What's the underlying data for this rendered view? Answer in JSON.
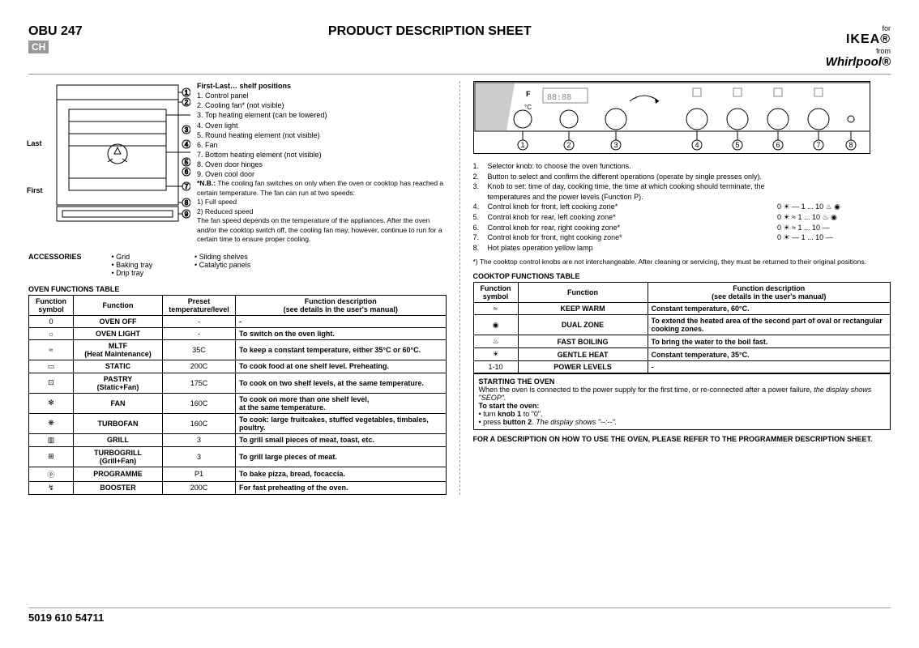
{
  "header": {
    "model": "OBU 247",
    "badge": "CH",
    "title": "PRODUCT DESCRIPTION SHEET",
    "brand_for": "for",
    "brand_ikea": "IKEA®",
    "brand_from": "from",
    "brand_whirlpool": "Whirlpool®"
  },
  "oven": {
    "last_label": "Last",
    "first_label": "First",
    "parts_heading": "First-Last… shelf positions",
    "parts": [
      "1. Control panel",
      "2. Cooling fan* (not visible)",
      "3. Top heating element (can be lowered)",
      "4. Oven light",
      "5. Round heating element (not visible)",
      "6. Fan",
      "7. Bottom heating element (not visible)",
      "8. Oven door hinges",
      "9. Oven cool door"
    ],
    "nb_label": "*N.B.:",
    "nb_text": "The cooling fan switches on only when the oven or cooktop has reached a certain temperature. The fan can run at two speeds:",
    "nb_line1": "1) Full speed",
    "nb_line2": "2) Reduced speed",
    "nb_tail": "The fan speed depends on the temperature of the appliances. After the oven and/or the cooktop switch off, the cooling fan may, however, continue to run for a certain time to ensure proper cooling."
  },
  "accessories": {
    "label": "ACCESSORIES",
    "col1": [
      "Grid",
      "Baking tray",
      "Drip tray"
    ],
    "col2": [
      "Sliding shelves",
      "Catalytic panels"
    ]
  },
  "oven_table": {
    "title": "OVEN FUNCTIONS TABLE",
    "headers": [
      "Function\nsymbol",
      "Function",
      "Preset\ntemperature/level",
      "Function description\n(see details in the user's manual)"
    ],
    "rows": [
      {
        "sym": "0",
        "fn": "OVEN OFF",
        "preset": "-",
        "desc": "-"
      },
      {
        "sym": "light",
        "fn": "OVEN LIGHT",
        "preset": "-",
        "desc": "To switch on the oven light."
      },
      {
        "sym": "mltf",
        "fn": "MLTF\n(Heat Maintenance)",
        "preset": "35C",
        "desc": "To keep a constant temperature, either 35°C or 60°C."
      },
      {
        "sym": "static",
        "fn": "STATIC",
        "preset": "200C",
        "desc": "To cook food at one shelf level. Preheating."
      },
      {
        "sym": "pastry",
        "fn": "PASTRY\n(Static+Fan)",
        "preset": "175C",
        "desc": "To cook on two shelf levels, at the same temperature."
      },
      {
        "sym": "fan",
        "fn": "FAN",
        "preset": "160C",
        "desc": "To cook on more than one shelf level,\nat the same temperature."
      },
      {
        "sym": "turbofan",
        "fn": "TURBOFAN",
        "preset": "160C",
        "desc": "To cook: large fruitcakes, stuffed vegetables, timbales, poultry."
      },
      {
        "sym": "grill",
        "fn": "GRILL",
        "preset": "3",
        "desc": "To grill small pieces of meat, toast, etc."
      },
      {
        "sym": "turbogrill",
        "fn": "TURBOGRILL\n(Grill+Fan)",
        "preset": "3",
        "desc": "To grill large pieces of meat."
      },
      {
        "sym": "prog",
        "fn": "PROGRAMME",
        "preset": "P1",
        "desc": "To bake pizza, bread, focaccia."
      },
      {
        "sym": "booster",
        "fn": "BOOSTER",
        "preset": "200C",
        "desc": "For fast preheating of the oven."
      }
    ]
  },
  "knobs": {
    "items": [
      {
        "n": "1.",
        "t": "Selector knob: to choose the oven functions.",
        "s": ""
      },
      {
        "n": "2.",
        "t": "Button to select and confirm the different operations (operate by single presses only).",
        "s": ""
      },
      {
        "n": "3.",
        "t": "Knob to set: time of day, cooking time, the time at which cooking should terminate, the temperatures and the power levels (Function P).",
        "s": ""
      },
      {
        "n": "4.",
        "t": "Control knob for front, left cooking zone*",
        "s": "0 ☀ — 1 ... 10 ♨ ◉"
      },
      {
        "n": "5.",
        "t": "Control knob for rear, left cooking zone*",
        "s": "0 ☀ ≈ 1 ... 10 ♨ ◉"
      },
      {
        "n": "6.",
        "t": "Control knob for rear, right cooking zone*",
        "s": "0 ☀ ≈ 1 ... 10 —"
      },
      {
        "n": "7.",
        "t": "Control knob for front, right cooking zone*",
        "s": "0 ☀ — 1 ... 10 —"
      },
      {
        "n": "8.",
        "t": "Hot plates operation yellow lamp",
        "s": ""
      }
    ],
    "footnote": "*) The cooktop control knobs are not interchangeable. After cleaning or servicing, they must be returned to their original positions."
  },
  "cooktop_table": {
    "title": "COOKTOP FUNCTIONS TABLE",
    "headers": [
      "Function\nsymbol",
      "Function",
      "Function description\n(see details in the user's manual)"
    ],
    "rows": [
      {
        "sym": "≈",
        "fn": "KEEP WARM",
        "desc": "Constant temperature, 60°C."
      },
      {
        "sym": "◉",
        "fn": "DUAL ZONE",
        "desc": "To extend the heated area of the second part of oval or rectangular cooking zones."
      },
      {
        "sym": "♨",
        "fn": "FAST BOILING",
        "desc": "To bring the water to the boil fast."
      },
      {
        "sym": "☀",
        "fn": "GENTLE HEAT",
        "desc": "Constant temperature, 35°C."
      },
      {
        "sym": "1-10",
        "fn": "POWER LEVELS",
        "desc": "-"
      }
    ]
  },
  "starting": {
    "heading": "STARTING THE OVEN",
    "line1a": "When the oven is connected to the power supply for the first time, or re-connected after a power failure, ",
    "line1b": "the display shows \"SEOP\".",
    "sub": "To start the oven:",
    "b1a": "turn ",
    "b1b": "knob 1",
    "b1c": " to \"0\".",
    "b2a": "press ",
    "b2b": "button 2",
    "b2c": ". ",
    "b2d": "The display shows \"--:--\"."
  },
  "final": "FOR A DESCRIPTION ON HOW TO USE THE OVEN, PLEASE REFER TO THE PROGRAMMER DESCRIPTION SHEET.",
  "footer": "5019 610 54711"
}
